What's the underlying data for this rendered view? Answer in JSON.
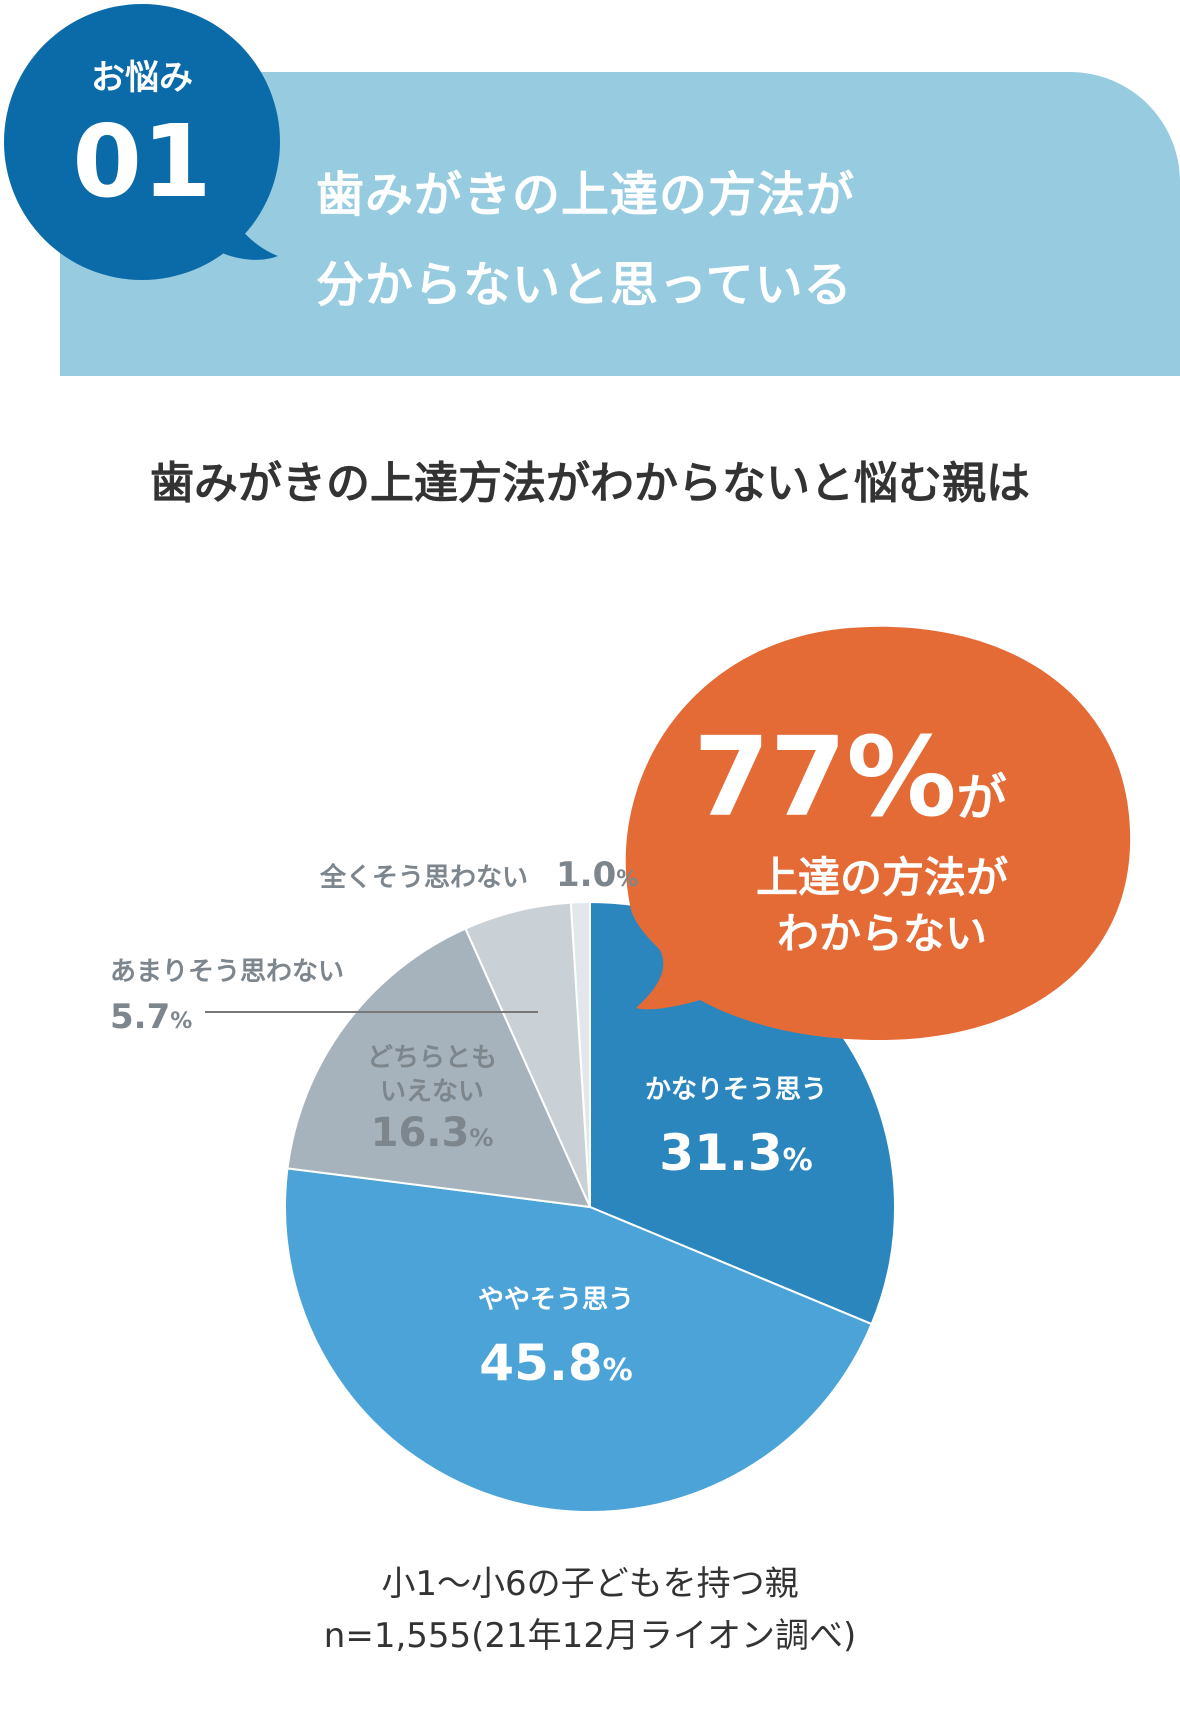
{
  "header": {
    "badge_label": "お悩み",
    "badge_number": "01",
    "title_line1": "歯みがきの上達の方法が",
    "title_line2": "分からないと思っている"
  },
  "chart_heading": "歯みがきの上達方法がわからないと悩む親は",
  "callout": {
    "big_value": "77%",
    "big_value_suffix": "が",
    "line1": "上達の方法が",
    "line2": "わからない"
  },
  "colors": {
    "header_band": "#96cbe0",
    "badge": "#0b6aa8",
    "callout": "#e56b36",
    "slice_strong": "#2b86bd",
    "slice_somewhat": "#4ca3d8",
    "slice_neutral": "#a7b3bc",
    "slice_not_much": "#c9d0d6",
    "slice_not_at_all": "#e3e7eb"
  },
  "chart_data": {
    "type": "pie",
    "categories": [
      "かなりそう思う",
      "ややそう思う",
      "どちらともいえない",
      "あまりそう思わない",
      "全くそう思わない"
    ],
    "values": [
      31.3,
      45.8,
      16.3,
      5.7,
      1.0
    ],
    "unit": "%",
    "title": "歯みがきの上達方法がわからないと悩む親は",
    "slice_labels": [
      {
        "lines": [
          "かなりそう思う"
        ],
        "value": "31.3",
        "unit": "%"
      },
      {
        "lines": [
          "ややそう思う"
        ],
        "value": "45.8",
        "unit": "%"
      },
      {
        "lines": [
          "どちらとも",
          "いえない"
        ],
        "value": "16.3",
        "unit": "%"
      },
      {
        "lines": [
          "あまりそう思わない"
        ],
        "value": "5.7",
        "unit": "%"
      },
      {
        "lines": [
          "全くそう思わない"
        ],
        "value": "1.0",
        "unit": "%"
      }
    ]
  },
  "source": {
    "line1": "小1〜小6の子どもを持つ親",
    "line2": "n=1,555(21年12月ライオン調べ)"
  }
}
